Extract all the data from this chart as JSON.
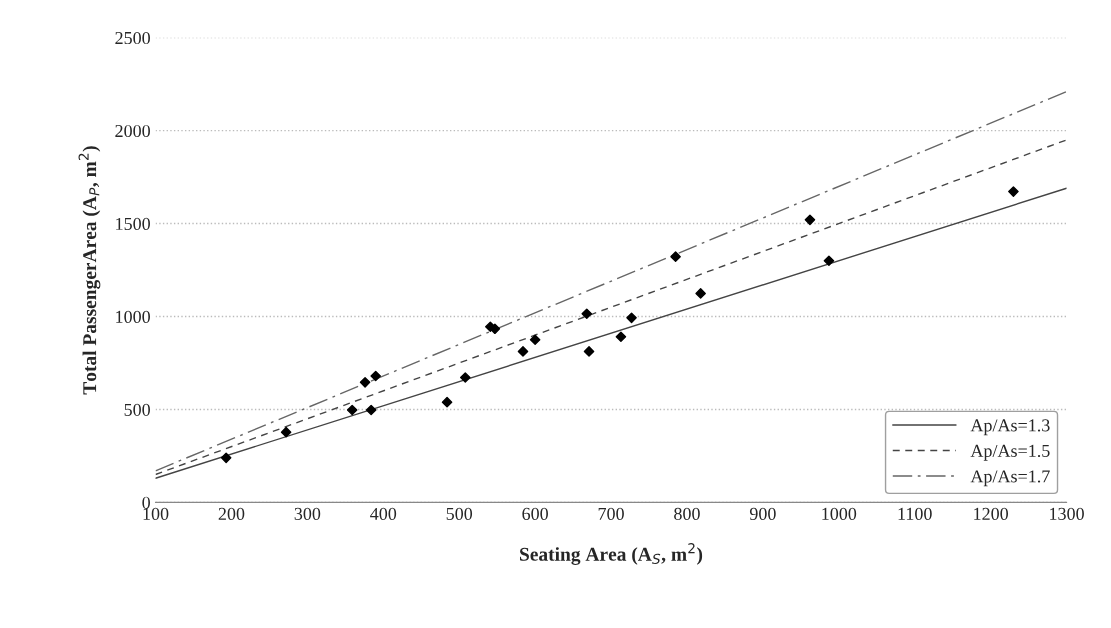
{
  "chart_data": {
    "type": "scatter",
    "xlabel": "Seating Area (A$_{S}$, m$^{2}$)",
    "ylabel": "Total PassengerArea (A$_{P}$, m$^{2}$)",
    "series": [
      {
        "color": "#000000",
        "marker": "diamond",
        "x": [
          193,
          272,
          359,
          376,
          384,
          388,
          390,
          484,
          508,
          541,
          547,
          584,
          600,
          668,
          671,
          713,
          727,
          785,
          818,
          962,
          987,
          1230
        ],
        "values": [
          240,
          378,
          497,
          646,
          497,
          null,
          680,
          539,
          672,
          945,
          934,
          812,
          875,
          1015,
          812,
          891,
          993,
          1322,
          1124,
          1520,
          1300,
          1672
        ]
      },
      {
        "type": "line",
        "name": "Ap/As=1.3",
        "color": "#444444",
        "line_style": "solid",
        "x": [
          100,
          1300
        ],
        "values": [
          130,
          1690
        ]
      },
      {
        "type": "line",
        "name": "Ap/As=1.5",
        "color": "#444444",
        "line_style": "dashed",
        "x": [
          100,
          1300
        ],
        "values": [
          150,
          1950
        ]
      },
      {
        "type": "line",
        "name": "Ap/As=1.7",
        "color": "#666666",
        "line_style": "dashdot",
        "x": [
          100,
          1300
        ],
        "values": [
          170,
          2210
        ]
      }
    ],
    "xlim": [
      100,
      1300
    ],
    "ylim": [
      0,
      2500
    ],
    "xticks": [
      100,
      200,
      300,
      400,
      500,
      600,
      700,
      800,
      900,
      1000,
      1100,
      1200,
      1300
    ],
    "yticks": [
      0,
      500,
      1000,
      1500,
      2000,
      2500
    ],
    "grid": "y",
    "legend": "bottom right"
  }
}
